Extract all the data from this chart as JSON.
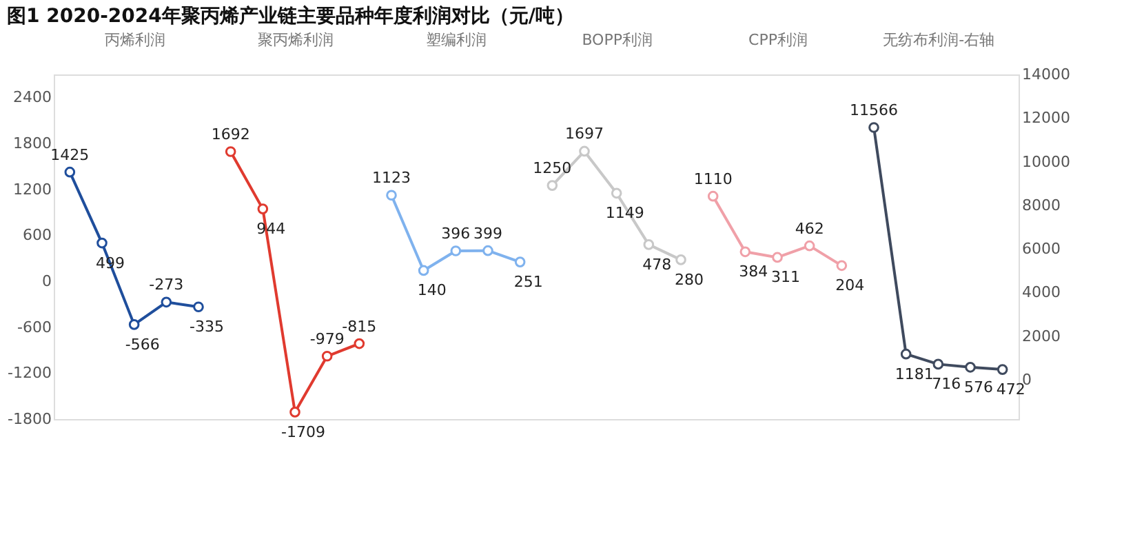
{
  "chart_data": {
    "type": "line",
    "title": "图1 2020-2024年聚丙烯产业链主要品种年度利润对比（元/吨）",
    "categories": [
      null,
      null,
      "丙烯利润",
      null,
      null,
      null,
      null,
      "聚丙烯利润",
      null,
      null,
      null,
      null,
      "塑编利润",
      null,
      null,
      null,
      null,
      "BOPP利润",
      null,
      null,
      null,
      null,
      "CPP利润",
      null,
      null,
      null,
      null,
      "无纺布利润-右轴",
      null,
      null
    ],
    "series": [
      {
        "color": "#1f4e9c",
        "values": [
          1425,
          499,
          -566,
          -273,
          -335,
          null,
          null,
          null,
          null,
          null,
          null,
          null,
          null,
          null,
          null,
          null,
          null,
          null,
          null,
          null,
          null,
          null,
          null,
          null,
          null,
          null,
          null,
          null,
          null,
          null
        ]
      },
      {
        "color": "#e03a2f",
        "values": [
          null,
          null,
          null,
          null,
          null,
          1692,
          944,
          -1709,
          -979,
          -815,
          null,
          null,
          null,
          null,
          null,
          null,
          null,
          null,
          null,
          null,
          null,
          null,
          null,
          null,
          null,
          null,
          null,
          null,
          null,
          null
        ]
      },
      {
        "color": "#7fb2ee",
        "values": [
          null,
          null,
          null,
          null,
          null,
          null,
          null,
          null,
          null,
          null,
          1123,
          140,
          396,
          399,
          251,
          null,
          null,
          null,
          null,
          null,
          null,
          null,
          null,
          null,
          null,
          null,
          null,
          null,
          null,
          null
        ]
      },
      {
        "color": "#c8c8c8",
        "values": [
          null,
          null,
          null,
          null,
          null,
          null,
          null,
          null,
          null,
          null,
          null,
          null,
          null,
          null,
          null,
          1250,
          1697,
          1149,
          478,
          280,
          null,
          null,
          null,
          null,
          null,
          null,
          null,
          null,
          null,
          null
        ]
      },
      {
        "color": "#f0a0a8",
        "values": [
          null,
          null,
          null,
          null,
          null,
          null,
          null,
          null,
          null,
          null,
          null,
          null,
          null,
          null,
          null,
          null,
          null,
          null,
          null,
          null,
          1110,
          384,
          311,
          462,
          204,
          null,
          null,
          null,
          null,
          null
        ]
      },
      {
        "color": "#3f4a5e",
        "axis": "y2",
        "values": [
          null,
          null,
          null,
          null,
          null,
          null,
          null,
          null,
          null,
          null,
          null,
          null,
          null,
          null,
          null,
          null,
          null,
          null,
          null,
          null,
          null,
          null,
          null,
          null,
          null,
          11566,
          1181,
          716,
          576,
          472
        ]
      }
    ],
    "ylim": [
      -1800,
      2700
    ],
    "yticks": [
      -1800,
      -1200,
      -600,
      0,
      600,
      1200,
      1800,
      2400
    ],
    "y2lim": [
      -1800,
      14000
    ],
    "y2ticks": [
      0,
      2000,
      4000,
      6000,
      8000,
      10000,
      12000,
      14000
    ],
    "data_labels": true,
    "marker": "circle",
    "grid": false
  }
}
